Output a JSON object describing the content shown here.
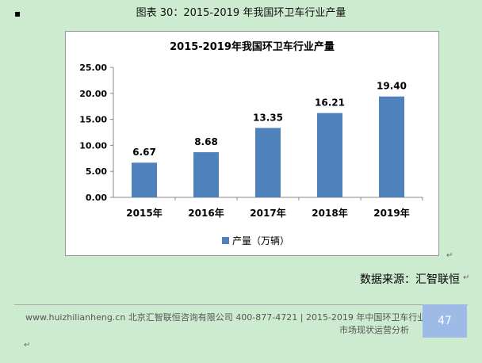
{
  "caption": "图表 30：2015-2019 年我国环卫车行业产量",
  "source": "数据来源：汇智联恒",
  "footer": {
    "website": "www.huizhilianheng.cn",
    "company": "北京汇智联恒咨询有限公司",
    "phone": "400-877-4721",
    "report_line1": "| 2015-2019 年中国环卫车行业",
    "report_line2": "市场现状运营分析"
  },
  "page_number": "47",
  "colors": {
    "bar": "#4f81bd",
    "background": "#cdeccf"
  },
  "chart_data": {
    "type": "bar",
    "title": "2015-2019年我国环卫车行业产量",
    "categories": [
      "2015年",
      "2016年",
      "2017年",
      "2018年",
      "2019年"
    ],
    "series": [
      {
        "name": "产量（万辆）",
        "values": [
          6.67,
          8.68,
          13.35,
          16.21,
          19.4
        ]
      }
    ],
    "value_labels": [
      "6.67",
      "8.68",
      "13.35",
      "16.21",
      "19.40"
    ],
    "yticks": [
      "0.00",
      "5.00",
      "10.00",
      "15.00",
      "20.00",
      "25.00"
    ],
    "ylim": [
      0,
      25
    ],
    "xlabel": "",
    "ylabel": "",
    "grid": false,
    "legend": "bottom"
  }
}
